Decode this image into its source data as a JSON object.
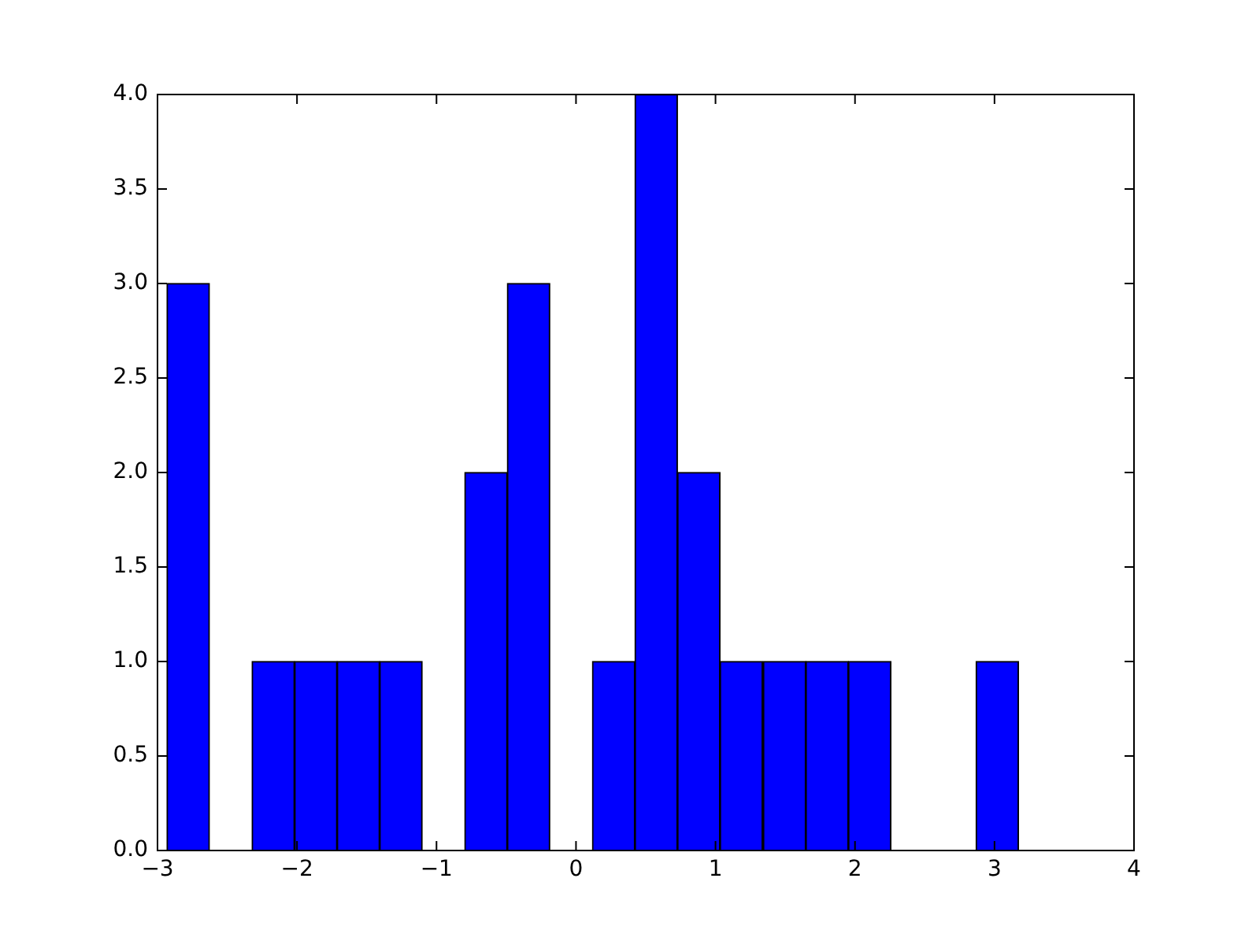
{
  "chart_data": {
    "type": "histogram",
    "bins": [
      -2.93,
      -2.63,
      -2.32,
      -2.02,
      -1.71,
      -1.41,
      -1.1,
      -0.8,
      -0.49,
      -0.19,
      0.12,
      0.42,
      0.73,
      1.03,
      1.34,
      1.65,
      1.95,
      2.26,
      2.56,
      2.87,
      3.17
    ],
    "values": [
      3,
      0,
      1,
      1,
      1,
      1,
      0,
      2,
      3,
      0,
      1,
      4,
      2,
      1,
      1,
      1,
      1,
      0,
      0,
      1
    ],
    "color": "#0000ff",
    "xlim": [
      -3,
      4
    ],
    "xticks": [
      {
        "value": -3,
        "label": "−3"
      },
      {
        "value": -2,
        "label": "−2"
      },
      {
        "value": -1,
        "label": "−1"
      },
      0,
      1,
      2,
      3,
      4
    ],
    "ylim": [
      0,
      4
    ],
    "yticks": [
      {
        "value": 0,
        "label": "0.0"
      },
      {
        "value": 0.5,
        "label": "0.5"
      },
      {
        "value": 1,
        "label": "1.0"
      },
      {
        "value": 1.5,
        "label": "1.5"
      },
      {
        "value": 2,
        "label": "2.0"
      },
      {
        "value": 2.5,
        "label": "2.5"
      },
      {
        "value": 3,
        "label": "3.0"
      },
      {
        "value": 3.5,
        "label": "3.5"
      },
      {
        "value": 4,
        "label": "4.0"
      }
    ],
    "grid": false,
    "legend": false
  }
}
